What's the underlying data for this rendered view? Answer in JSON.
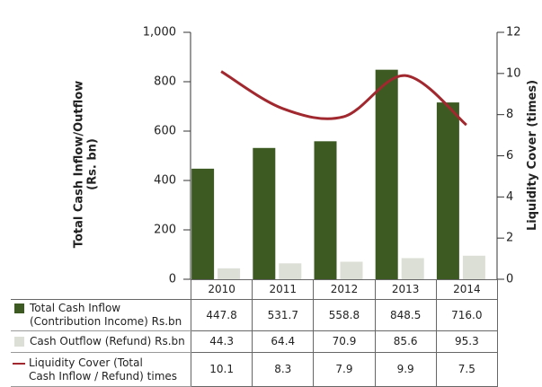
{
  "chart_data": {
    "type": "bar-line-table",
    "y_label": "Total Cash Inflow/Outflow\n(Rs. bn)",
    "y2_label": "Liquidity Cover (times)",
    "categories": [
      "2010",
      "2011",
      "2012",
      "2013",
      "2014"
    ],
    "ylim": [
      0,
      1000
    ],
    "yticks": [
      0,
      200,
      400,
      600,
      800,
      {
        "value": 1000,
        "label": "1,000"
      }
    ],
    "y2lim": [
      0,
      12
    ],
    "y2ticks": [
      0,
      2,
      4,
      6,
      8,
      10,
      12
    ],
    "series": [
      {
        "name": "Total Cash Inflow\n(Contribution Income) Rs.bn",
        "type": "bar",
        "color": "#3d5a23",
        "values": [
          447.8,
          531.7,
          558.8,
          848.5,
          716.0
        ],
        "value_labels": [
          "447.8",
          "531.7",
          "558.8",
          "848.5",
          "716.0"
        ]
      },
      {
        "name": "Cash Outflow (Refund) Rs.bn",
        "type": "bar",
        "color": "#dcdfd5",
        "values": [
          44.3,
          64.4,
          70.9,
          85.6,
          95.3
        ],
        "value_labels": [
          "44.3",
          "64.4",
          "70.9",
          "85.6",
          "95.3"
        ]
      },
      {
        "name": "Liquidity Cover (Total\nCash Inflow / Refund) times",
        "type": "line",
        "axis": "y2",
        "color": "#a0282e",
        "values": [
          10.1,
          8.3,
          7.9,
          9.9,
          7.5
        ],
        "value_labels": [
          "10.1",
          "8.3",
          "7.9",
          "9.9",
          "7.5"
        ]
      }
    ]
  }
}
